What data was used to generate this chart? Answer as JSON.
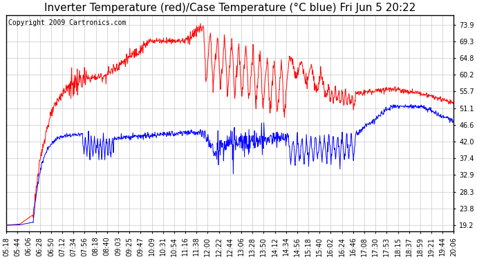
{
  "title": "Inverter Temperature (red)/Case Temperature (°C blue) Fri Jun 5 20:22",
  "copyright": "Copyright 2009 Cartronics.com",
  "background_color": "#ffffff",
  "plot_bg_color": "#ffffff",
  "grid_color": "#c8c8c8",
  "y_ticks": [
    19.2,
    23.8,
    28.3,
    32.9,
    37.4,
    42.0,
    46.6,
    51.1,
    55.7,
    60.2,
    64.8,
    69.3,
    73.9
  ],
  "y_min": 17.5,
  "y_max": 76.5,
  "x_labels": [
    "05:18",
    "05:44",
    "06:06",
    "06:28",
    "06:50",
    "07:12",
    "07:34",
    "07:56",
    "08:18",
    "08:40",
    "09:03",
    "09:25",
    "09:47",
    "10:09",
    "10:31",
    "10:54",
    "11:16",
    "11:38",
    "12:00",
    "12:22",
    "12:44",
    "13:06",
    "13:28",
    "13:50",
    "14:12",
    "14:34",
    "14:56",
    "15:18",
    "15:40",
    "16:02",
    "16:24",
    "16:46",
    "17:08",
    "17:30",
    "17:53",
    "18:15",
    "18:37",
    "18:59",
    "19:21",
    "19:44",
    "20:06"
  ],
  "red_color": "#ff0000",
  "blue_color": "#0000ff",
  "title_fontsize": 11,
  "copyright_fontsize": 7,
  "tick_fontsize": 7
}
